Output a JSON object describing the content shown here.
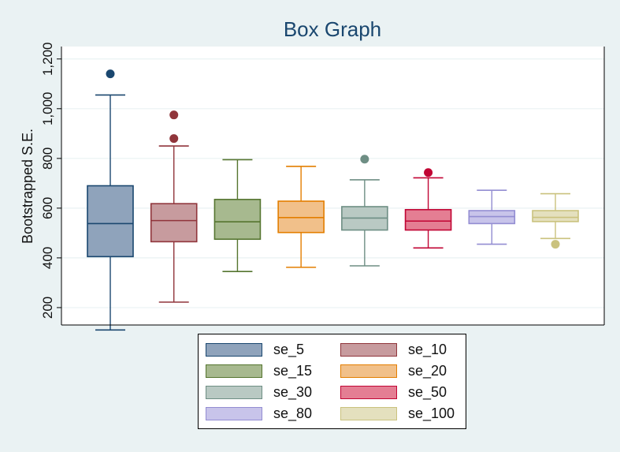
{
  "chart_data": {
    "type": "box",
    "title": "Box Graph",
    "ylabel": "Bootstrapped S.E.",
    "xlabel": "",
    "ylim": [
      130,
      1250
    ],
    "yticks": [
      200,
      400,
      600,
      800,
      1000,
      1200
    ],
    "ytick_labels": [
      "200",
      "400",
      "600",
      "800",
      "1,000",
      "1,200"
    ],
    "grid": true,
    "legend_position": "bottom",
    "series": [
      {
        "name": "se_5",
        "color": "#1a476f",
        "fill": "#8fa3bb",
        "whisker_low": 110,
        "q1": 405,
        "median": 538,
        "q3": 690,
        "whisker_high": 1055,
        "outliers": [
          1140
        ]
      },
      {
        "name": "se_10",
        "color": "#90353b",
        "fill": "#c79b9e",
        "whisker_low": 222,
        "q1": 465,
        "median": 550,
        "q3": 618,
        "whisker_high": 850,
        "outliers": [
          880,
          975
        ]
      },
      {
        "name": "se_15",
        "color": "#55752f",
        "fill": "#a7b98f",
        "whisker_low": 345,
        "q1": 475,
        "median": 545,
        "q3": 635,
        "whisker_high": 795,
        "outliers": []
      },
      {
        "name": "se_20",
        "color": "#e37e00",
        "fill": "#f1c08a",
        "whisker_low": 362,
        "q1": 502,
        "median": 562,
        "q3": 628,
        "whisker_high": 768,
        "outliers": []
      },
      {
        "name": "se_30",
        "color": "#6e8e84",
        "fill": "#b9c9c3",
        "whisker_low": 368,
        "q1": 512,
        "median": 560,
        "q3": 606,
        "whisker_high": 714,
        "outliers": [
          797
        ]
      },
      {
        "name": "se_50",
        "color": "#c10534",
        "fill": "#e47e93",
        "whisker_low": 440,
        "q1": 512,
        "median": 548,
        "q3": 594,
        "whisker_high": 722,
        "outliers": [
          743
        ]
      },
      {
        "name": "se_80",
        "color": "#938dd2",
        "fill": "#c8c4ea",
        "whisker_low": 455,
        "q1": 538,
        "median": 566,
        "q3": 590,
        "whisker_high": 672,
        "outliers": []
      },
      {
        "name": "se_100",
        "color": "#cac27e",
        "fill": "#e4e0be",
        "whisker_low": 478,
        "q1": 546,
        "median": 563,
        "q3": 590,
        "whisker_high": 658,
        "outliers": [
          455
        ]
      }
    ]
  }
}
